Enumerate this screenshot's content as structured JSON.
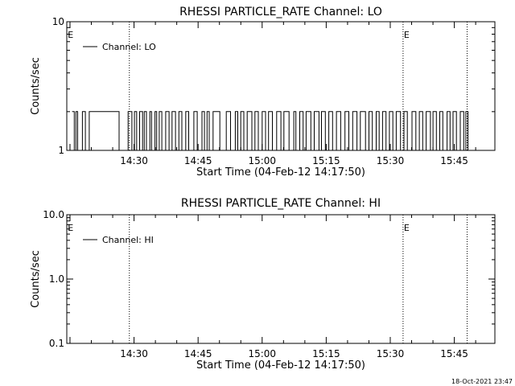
{
  "timestamp": "18-Oct-2021 23:47",
  "chart_data": [
    {
      "type": "line",
      "title": "RHESSI PARTICLE_RATE Channel: LO",
      "xlabel": "Start Time (04-Feb-12 14:17:50)",
      "ylabel": "Counts/sec",
      "yscale": "log",
      "ylim": [
        1,
        10
      ],
      "ytick_labels": [
        "1",
        "10"
      ],
      "ytick_values": [
        1,
        10
      ],
      "xlim_minutes": [
        14.25,
        114.5
      ],
      "xtick_labels": [
        "14:30",
        "14:45",
        "15:00",
        "15:15",
        "15:30",
        "15:45"
      ],
      "xtick_minutes": [
        30,
        45,
        60,
        75,
        90,
        105
      ],
      "marker_label": "E",
      "markers_minutes": [
        14.3,
        93
      ],
      "dotted_lines_minutes": [
        28.9,
        93,
        108
      ],
      "legend": "top-left",
      "series": [
        {
          "name": "Channel: LO",
          "values_counts": [
            1,
            2
          ],
          "segments": [
            [
              15.5,
              16.0,
              2
            ],
            [
              16.0,
              16.4,
              1
            ],
            [
              16.4,
              16.8,
              2
            ],
            [
              16.8,
              17.9,
              1
            ],
            [
              17.9,
              18.6,
              2
            ],
            [
              18.6,
              19.5,
              1
            ],
            [
              19.5,
              26.5,
              2
            ],
            [
              26.5,
              28.6,
              1
            ],
            [
              28.6,
              29.5,
              2
            ],
            [
              29.5,
              30.1,
              1
            ],
            [
              30.1,
              30.6,
              2
            ],
            [
              30.6,
              31.3,
              1
            ],
            [
              31.3,
              32.0,
              2
            ],
            [
              32.0,
              32.4,
              1
            ],
            [
              32.4,
              32.9,
              2
            ],
            [
              32.9,
              33.7,
              1
            ],
            [
              33.7,
              34.1,
              2
            ],
            [
              34.1,
              34.9,
              1
            ],
            [
              34.9,
              35.3,
              2
            ],
            [
              35.3,
              35.9,
              1
            ],
            [
              35.9,
              36.5,
              2
            ],
            [
              36.5,
              37.4,
              1
            ],
            [
              37.4,
              38.2,
              2
            ],
            [
              38.2,
              38.9,
              1
            ],
            [
              38.9,
              39.7,
              2
            ],
            [
              39.7,
              40.5,
              1
            ],
            [
              40.5,
              41.2,
              2
            ],
            [
              41.2,
              42.1,
              1
            ],
            [
              42.1,
              42.8,
              2
            ],
            [
              42.8,
              44.0,
              1
            ],
            [
              44.0,
              44.8,
              2
            ],
            [
              44.8,
              45.9,
              1
            ],
            [
              45.9,
              46.5,
              2
            ],
            [
              46.5,
              47.1,
              1
            ],
            [
              47.1,
              47.6,
              2
            ],
            [
              47.6,
              48.5,
              1
            ],
            [
              48.5,
              50.1,
              2
            ],
            [
              50.1,
              51.6,
              1
            ],
            [
              51.6,
              52.6,
              2
            ],
            [
              52.6,
              53.7,
              1
            ],
            [
              53.7,
              54.3,
              2
            ],
            [
              54.3,
              55.0,
              1
            ],
            [
              55.0,
              55.7,
              2
            ],
            [
              55.7,
              56.5,
              1
            ],
            [
              56.5,
              57.6,
              2
            ],
            [
              57.6,
              58.3,
              1
            ],
            [
              58.3,
              59.1,
              2
            ],
            [
              59.1,
              60.0,
              1
            ],
            [
              60.0,
              60.8,
              2
            ],
            [
              60.8,
              61.5,
              1
            ],
            [
              61.5,
              62.4,
              2
            ],
            [
              62.4,
              63.4,
              1
            ],
            [
              63.4,
              64.4,
              2
            ],
            [
              64.4,
              65.1,
              1
            ],
            [
              65.1,
              66.3,
              2
            ],
            [
              66.3,
              67.4,
              1
            ],
            [
              67.4,
              67.9,
              2
            ],
            [
              67.9,
              68.8,
              1
            ],
            [
              68.8,
              69.6,
              2
            ],
            [
              69.6,
              70.3,
              1
            ],
            [
              70.3,
              71.4,
              2
            ],
            [
              71.4,
              72.2,
              1
            ],
            [
              72.2,
              73.3,
              2
            ],
            [
              73.3,
              73.9,
              1
            ],
            [
              73.9,
              74.8,
              2
            ],
            [
              74.8,
              75.6,
              1
            ],
            [
              75.6,
              76.5,
              2
            ],
            [
              76.5,
              77.4,
              1
            ],
            [
              77.4,
              78.4,
              2
            ],
            [
              78.4,
              79.4,
              1
            ],
            [
              79.4,
              80.3,
              2
            ],
            [
              80.3,
              81.2,
              1
            ],
            [
              81.2,
              82.2,
              2
            ],
            [
              82.2,
              83.0,
              1
            ],
            [
              83.0,
              84.2,
              2
            ],
            [
              84.2,
              85.0,
              1
            ],
            [
              85.0,
              85.8,
              2
            ],
            [
              85.8,
              86.7,
              1
            ],
            [
              86.7,
              87.4,
              2
            ],
            [
              87.4,
              88.2,
              1
            ],
            [
              88.2,
              89.0,
              2
            ],
            [
              89.0,
              89.8,
              1
            ],
            [
              89.8,
              90.6,
              2
            ],
            [
              90.6,
              91.4,
              1
            ],
            [
              91.4,
              92.4,
              2
            ],
            [
              92.4,
              93.2,
              1
            ],
            [
              93.2,
              94.0,
              2
            ],
            [
              94.0,
              95.1,
              1
            ],
            [
              95.1,
              96.0,
              2
            ],
            [
              96.0,
              96.8,
              1
            ],
            [
              96.8,
              97.6,
              2
            ],
            [
              97.6,
              98.4,
              1
            ],
            [
              98.4,
              99.4,
              2
            ],
            [
              99.4,
              100.0,
              1
            ],
            [
              100.0,
              100.8,
              2
            ],
            [
              100.8,
              101.6,
              1
            ],
            [
              101.6,
              102.3,
              2
            ],
            [
              102.3,
              103.3,
              1
            ],
            [
              103.3,
              104.0,
              2
            ],
            [
              104.0,
              104.7,
              1
            ],
            [
              104.7,
              105.5,
              2
            ],
            [
              105.5,
              106.4,
              1
            ],
            [
              106.4,
              107.2,
              2
            ],
            [
              107.2,
              107.7,
              1
            ],
            [
              107.7,
              108.2,
              2
            ],
            [
              108.2,
              108.6,
              1
            ]
          ]
        }
      ]
    },
    {
      "type": "line",
      "title": "RHESSI PARTICLE_RATE Channel: HI",
      "xlabel": "Start Time (04-Feb-12 14:17:50)",
      "ylabel": "Counts/sec",
      "yscale": "log",
      "ylim": [
        0.1,
        10
      ],
      "ytick_labels": [
        "0.1",
        "1.0",
        "10.0"
      ],
      "ytick_values": [
        0.1,
        1,
        10
      ],
      "xlim_minutes": [
        14.25,
        114.5
      ],
      "xtick_labels": [
        "14:30",
        "14:45",
        "15:00",
        "15:15",
        "15:30",
        "15:45"
      ],
      "xtick_minutes": [
        30,
        45,
        60,
        75,
        90,
        105
      ],
      "marker_label": "E",
      "markers_minutes": [
        14.3,
        93
      ],
      "dotted_lines_minutes": [
        28.9,
        93,
        108
      ],
      "legend": "top-left",
      "series": [
        {
          "name": "Channel: HI",
          "segments": []
        }
      ]
    }
  ]
}
